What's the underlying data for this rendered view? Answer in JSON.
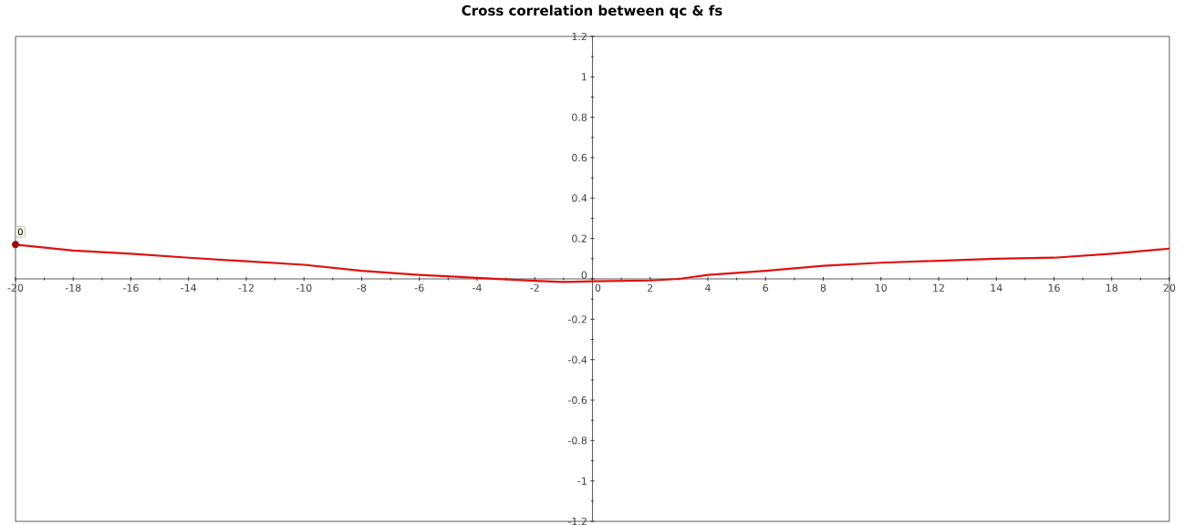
{
  "chart_data": {
    "type": "line",
    "title": "Cross correlation between qc & fs",
    "x": [
      -20,
      -18,
      -16,
      -14,
      -12,
      -10,
      -8,
      -6,
      -4,
      -2,
      -1,
      0,
      2,
      3,
      4,
      6,
      8,
      10,
      12,
      14,
      16,
      18,
      20
    ],
    "values": [
      0.17,
      0.14,
      0.125,
      0.105,
      0.087,
      0.07,
      0.04,
      0.02,
      0.005,
      -0.01,
      -0.015,
      -0.012,
      -0.008,
      0,
      0.02,
      0.04,
      0.065,
      0.08,
      0.09,
      0.1,
      0.105,
      0.125,
      0.15
    ],
    "color": "#e01010",
    "xlim": [
      -20,
      20
    ],
    "ylim": [
      -1.2,
      1.2
    ],
    "xticks": [
      -20,
      -18,
      -16,
      -14,
      -12,
      -10,
      -8,
      -6,
      -4,
      -2,
      0,
      2,
      4,
      6,
      8,
      10,
      12,
      14,
      16,
      18,
      20
    ],
    "yticks": [
      -1.2,
      -1,
      -0.8,
      -0.6,
      -0.4,
      -0.2,
      0,
      0.2,
      0.4,
      0.6,
      0.8,
      1,
      1.2
    ],
    "annotations": [
      {
        "text": "0",
        "x": -20,
        "y": 0.17
      }
    ]
  }
}
